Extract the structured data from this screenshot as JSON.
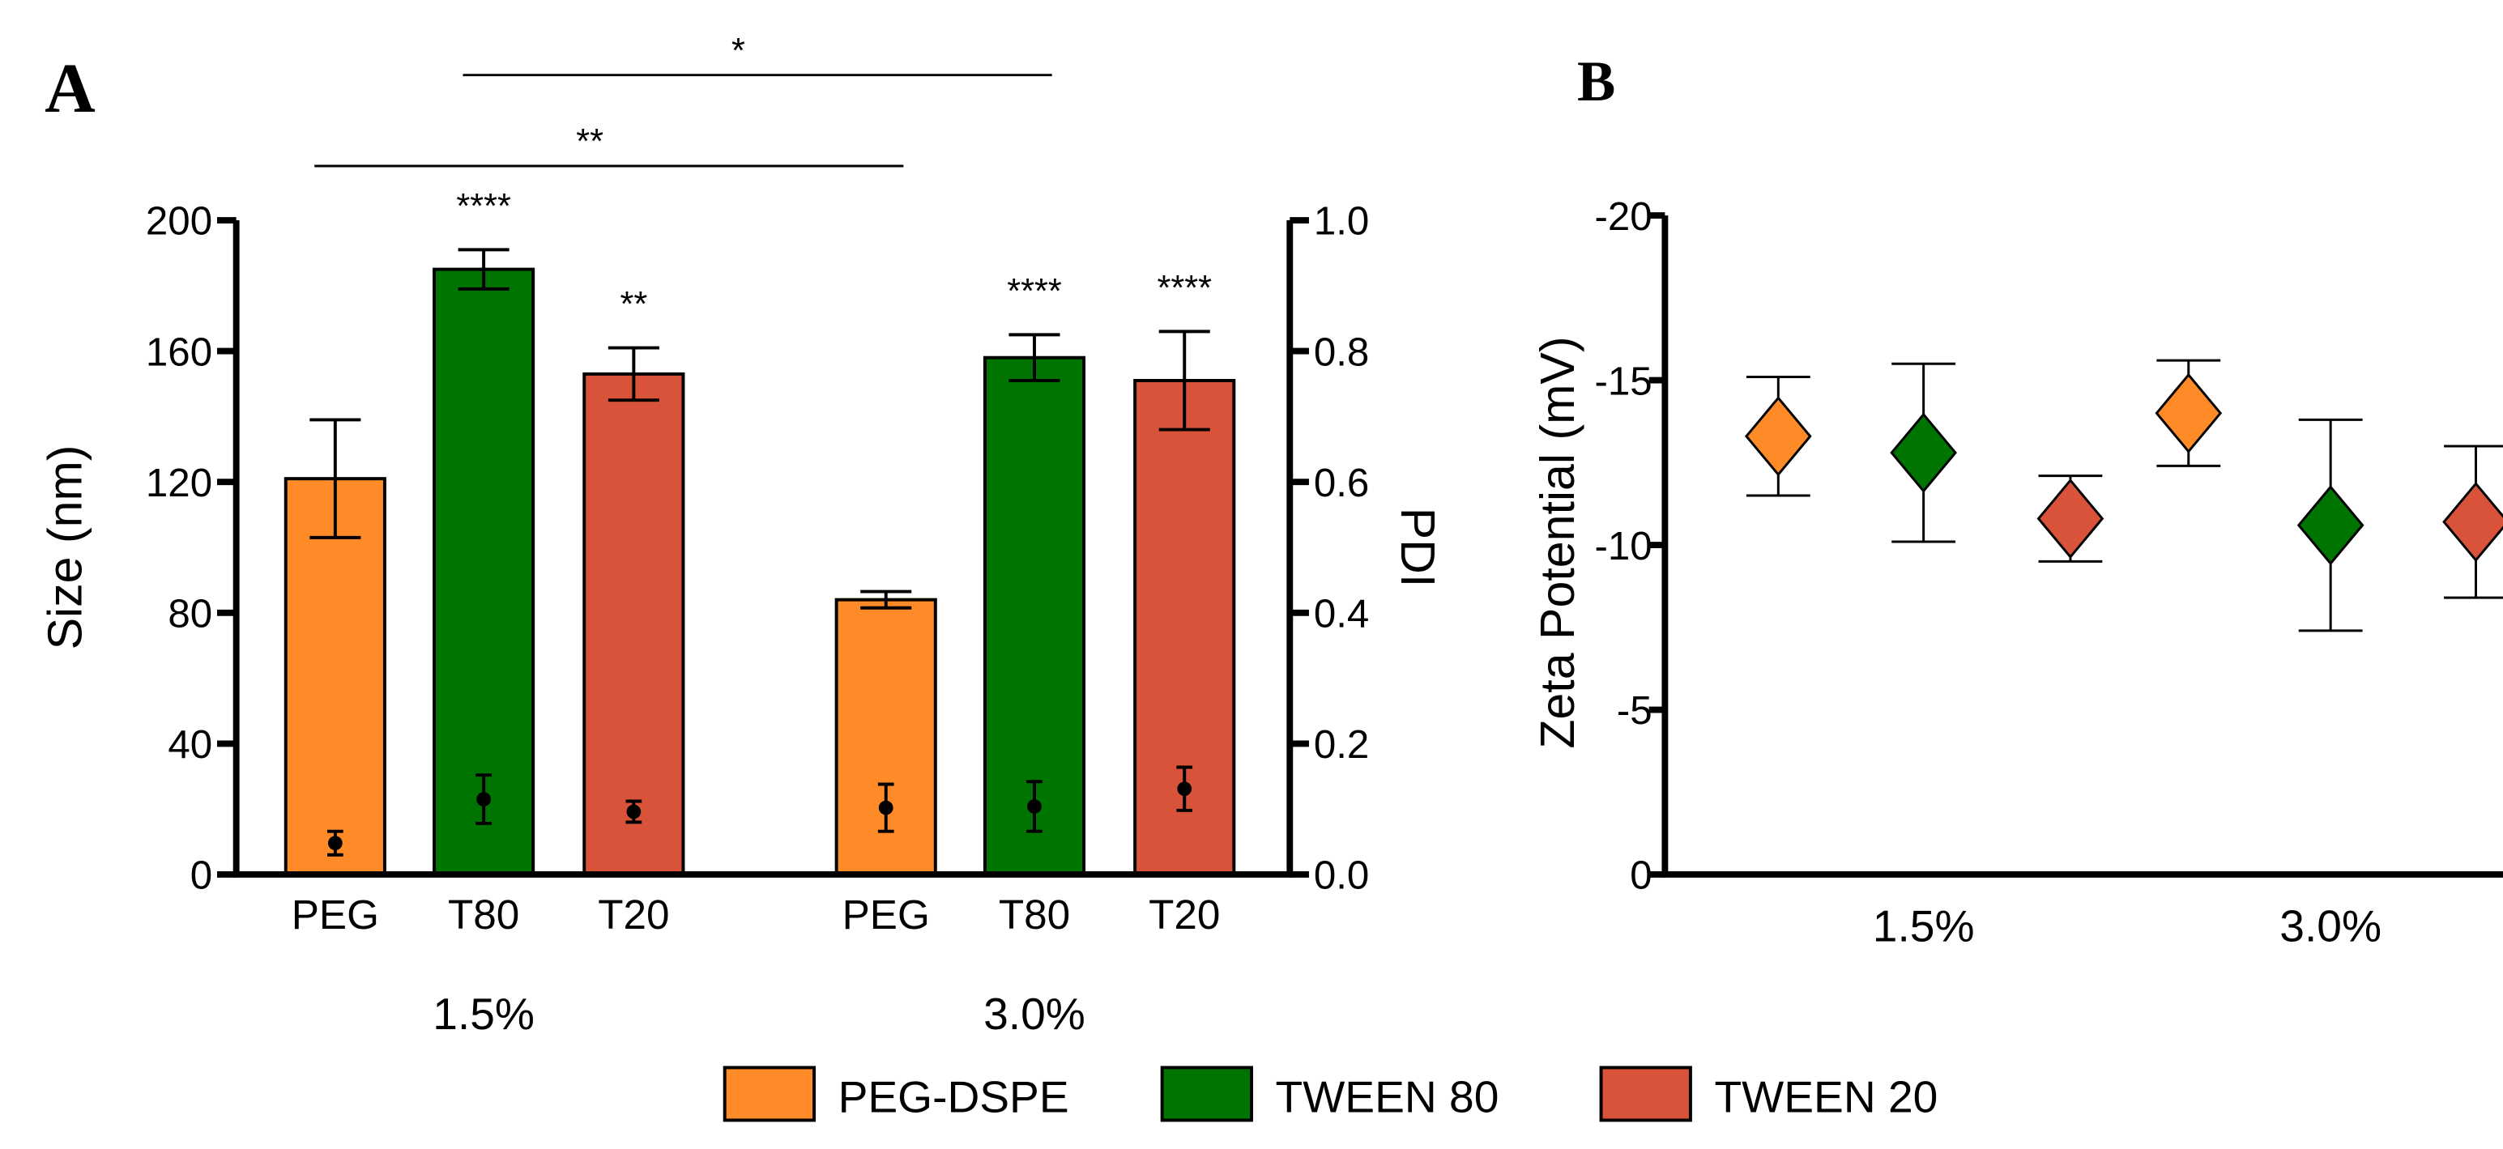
{
  "colors": {
    "PEG-DSPE": "#FF8A28",
    "TWEEN 80": "#007400",
    "TWEEN 20": "#D9533A"
  },
  "legend": [
    "PEG-DSPE",
    "TWEEN 80",
    "TWEEN 20"
  ],
  "chart_data": [
    {
      "panel": "A",
      "type": "bar",
      "ylabel": "Size (nm)",
      "ylabel_right": "PDI",
      "ylim": [
        0,
        200
      ],
      "yticks": [
        "0",
        "40",
        "80",
        "120",
        "160",
        "200"
      ],
      "ylim_right": [
        0,
        1.0
      ],
      "yticks_right": [
        "0.0",
        "0.2",
        "0.4",
        "0.6",
        "0.8",
        "1.0"
      ],
      "groups": [
        "1.5%",
        "3.0%"
      ],
      "categories": [
        "PEG",
        "T80",
        "T20"
      ],
      "series": [
        {
          "group": "1.5%",
          "category": "PEG",
          "name": "PEG-DSPE",
          "size": 121,
          "size_err": 18,
          "pdi": 0.048,
          "pdi_err": 0.018,
          "sig": ""
        },
        {
          "group": "1.5%",
          "category": "T80",
          "name": "TWEEN 80",
          "size": 185,
          "size_err": 6,
          "pdi": 0.115,
          "pdi_err": 0.037,
          "sig": "****"
        },
        {
          "group": "1.5%",
          "category": "T20",
          "name": "TWEEN 20",
          "size": 153,
          "size_err": 8,
          "pdi": 0.096,
          "pdi_err": 0.016,
          "sig": "**"
        },
        {
          "group": "3.0%",
          "category": "PEG",
          "name": "PEG-DSPE",
          "size": 84,
          "size_err": 2.5,
          "pdi": 0.102,
          "pdi_err": 0.036,
          "sig": ""
        },
        {
          "group": "3.0%",
          "category": "T80",
          "name": "TWEEN 80",
          "size": 158,
          "size_err": 7,
          "pdi": 0.104,
          "pdi_err": 0.038,
          "sig": "****"
        },
        {
          "group": "3.0%",
          "category": "T20",
          "name": "TWEEN 20",
          "size": 151,
          "size_err": 15,
          "pdi": 0.131,
          "pdi_err": 0.033,
          "sig": "****"
        }
      ],
      "brackets": [
        {
          "from": "1.5% T80",
          "to": "3.0% T80",
          "label": "*"
        },
        {
          "from": "1.5% PEG",
          "to": "3.0% PEG",
          "label": "**"
        }
      ]
    },
    {
      "panel": "B",
      "type": "scatter",
      "ylabel": "Zeta Potential (mV)",
      "ylim": [
        0,
        -20
      ],
      "yticks": [
        "0",
        "-5",
        "-10",
        "-15",
        "-20"
      ],
      "categories": [
        "1.5%",
        "3.0%"
      ],
      "series": [
        {
          "name": "PEG-DSPE",
          "values": [
            -13.3,
            -14.0
          ],
          "errors": [
            1.8,
            1.6
          ]
        },
        {
          "name": "TWEEN 80",
          "values": [
            -12.8,
            -10.6
          ],
          "errors": [
            2.7,
            3.2
          ]
        },
        {
          "name": "TWEEN 20",
          "values": [
            -10.8,
            -10.7
          ],
          "errors": [
            1.3,
            2.3
          ]
        }
      ]
    }
  ]
}
